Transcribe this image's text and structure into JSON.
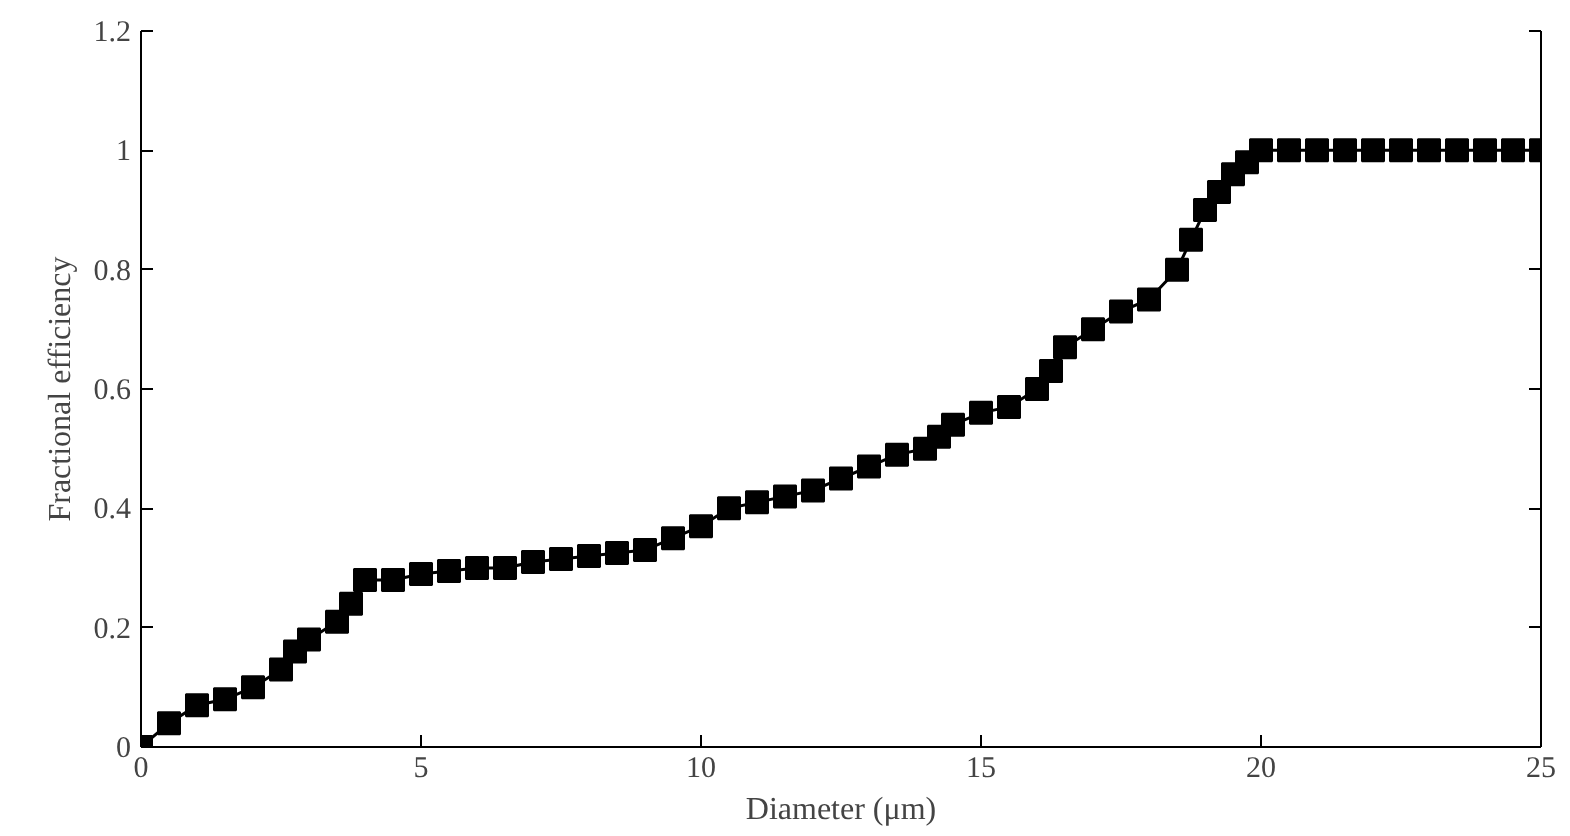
{
  "chart_data": {
    "type": "line",
    "xlabel": "Diameter (μm)",
    "ylabel": "Fractional efficiency",
    "marker": "square",
    "line_style": "solid",
    "grid": false,
    "xlim": [
      0,
      25
    ],
    "xticks": [
      0,
      5,
      10,
      15,
      20,
      25
    ],
    "ylim": [
      0,
      1.2
    ],
    "yticks": [
      0,
      0.2,
      0.4,
      0.6,
      0.8,
      1,
      1.2
    ],
    "series": [
      {
        "color": "#000000",
        "x": [
          0,
          0.5,
          1,
          1.5,
          2,
          2.5,
          2.75,
          3,
          3.5,
          3.75,
          4,
          4.5,
          5,
          5.5,
          6,
          6.5,
          7,
          7.5,
          8,
          8.5,
          9,
          9.5,
          10,
          10.5,
          11,
          11.5,
          12,
          12.5,
          13,
          13.5,
          14,
          14.25,
          14.5,
          15,
          15.5,
          16,
          16.25,
          16.5,
          17,
          17.5,
          18,
          18.5,
          18.75,
          19,
          19.25,
          19.5,
          19.75,
          20,
          20.5,
          21,
          21.5,
          22,
          22.5,
          23,
          23.5,
          24,
          24.5,
          25
        ],
        "values": [
          0,
          0.04,
          0.07,
          0.08,
          0.1,
          0.13,
          0.16,
          0.18,
          0.21,
          0.24,
          0.28,
          0.28,
          0.29,
          0.295,
          0.3,
          0.3,
          0.31,
          0.315,
          0.32,
          0.325,
          0.33,
          0.35,
          0.37,
          0.4,
          0.41,
          0.42,
          0.43,
          0.45,
          0.47,
          0.49,
          0.5,
          0.52,
          0.54,
          0.56,
          0.57,
          0.6,
          0.63,
          0.67,
          0.7,
          0.73,
          0.75,
          0.8,
          0.85,
          0.9,
          0.93,
          0.96,
          0.98,
          1,
          1,
          1,
          1,
          1,
          1,
          1,
          1,
          1,
          1,
          1
        ]
      }
    ]
  }
}
